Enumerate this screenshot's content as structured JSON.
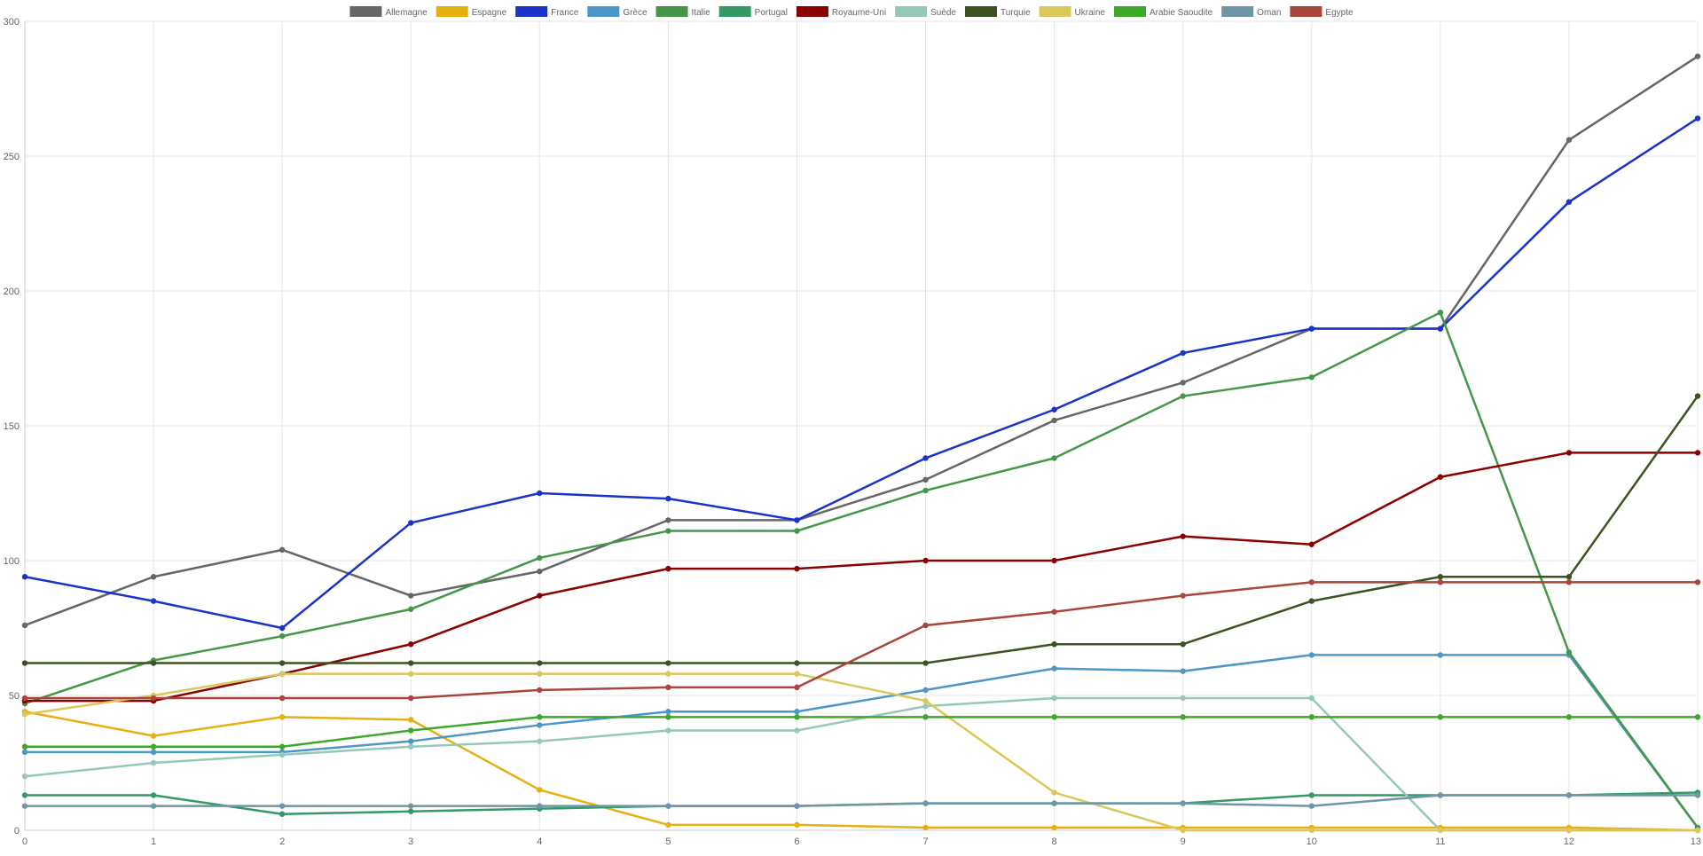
{
  "chart_data": {
    "type": "line",
    "title": "",
    "xlabel": "",
    "ylabel": "",
    "legend_position": "top-center",
    "grid": true,
    "x": [
      0,
      1,
      2,
      3,
      4,
      5,
      6,
      7,
      8,
      9,
      10,
      11,
      12,
      13
    ],
    "x_ticks": [
      "0",
      "1",
      "2",
      "3",
      "4",
      "5",
      "6",
      "7",
      "8",
      "9",
      "10",
      "11",
      "12",
      "13"
    ],
    "ylim": [
      0,
      300
    ],
    "y_ticks": [
      "0",
      "50",
      "100",
      "150",
      "200",
      "250",
      "300"
    ],
    "series": [
      {
        "name": "Allemagne",
        "color": "#666666",
        "values": [
          76,
          94,
          104,
          87,
          96,
          115,
          115,
          130,
          152,
          166,
          186,
          186,
          256,
          287
        ]
      },
      {
        "name": "Espagne",
        "color": "#e6b012",
        "values": [
          44,
          35,
          42,
          41,
          15,
          2,
          2,
          1,
          1,
          1,
          1,
          1,
          1,
          0
        ]
      },
      {
        "name": "France",
        "color": "#1a33c8",
        "values": [
          94,
          85,
          75,
          114,
          125,
          123,
          115,
          138,
          156,
          177,
          186,
          186,
          233,
          264
        ]
      },
      {
        "name": "Grèce",
        "color": "#4b97c7",
        "values": [
          29,
          29,
          29,
          33,
          39,
          44,
          44,
          52,
          60,
          59,
          65,
          65,
          65,
          1
        ]
      },
      {
        "name": "Italie",
        "color": "#46964a",
        "values": [
          47,
          63,
          72,
          82,
          101,
          111,
          111,
          126,
          138,
          161,
          168,
          192,
          66,
          1
        ]
      },
      {
        "name": "Portugal",
        "color": "#339966",
        "values": [
          13,
          13,
          6,
          7,
          8,
          9,
          9,
          10,
          10,
          10,
          13,
          13,
          13,
          14
        ]
      },
      {
        "name": "Royaume-Uni",
        "color": "#8b0000",
        "values": [
          48,
          48,
          58,
          69,
          87,
          97,
          97,
          100,
          100,
          109,
          106,
          131,
          140,
          140
        ]
      },
      {
        "name": "Suède",
        "color": "#96c8b9",
        "values": [
          20,
          25,
          28,
          31,
          33,
          37,
          37,
          46,
          49,
          49,
          49,
          0,
          0,
          0
        ]
      },
      {
        "name": "Turquie",
        "color": "#3d5222",
        "values": [
          62,
          62,
          62,
          62,
          62,
          62,
          62,
          62,
          69,
          69,
          85,
          94,
          94,
          161
        ]
      },
      {
        "name": "Ukraine",
        "color": "#dcc85a",
        "values": [
          43,
          50,
          58,
          58,
          58,
          58,
          58,
          48,
          14,
          0,
          0,
          0,
          0,
          0
        ]
      },
      {
        "name": "Arabie Saoudite",
        "color": "#3caa28",
        "values": [
          31,
          31,
          31,
          37,
          42,
          42,
          42,
          42,
          42,
          42,
          42,
          42,
          42,
          42
        ]
      },
      {
        "name": "Oman",
        "color": "#6e96a8",
        "values": [
          9,
          9,
          9,
          9,
          9,
          9,
          9,
          10,
          10,
          10,
          9,
          13,
          13,
          13
        ]
      },
      {
        "name": "Egypte",
        "color": "#a8463c",
        "values": [
          49,
          49,
          49,
          49,
          52,
          53,
          53,
          76,
          81,
          87,
          92,
          92,
          92,
          92
        ]
      }
    ]
  }
}
